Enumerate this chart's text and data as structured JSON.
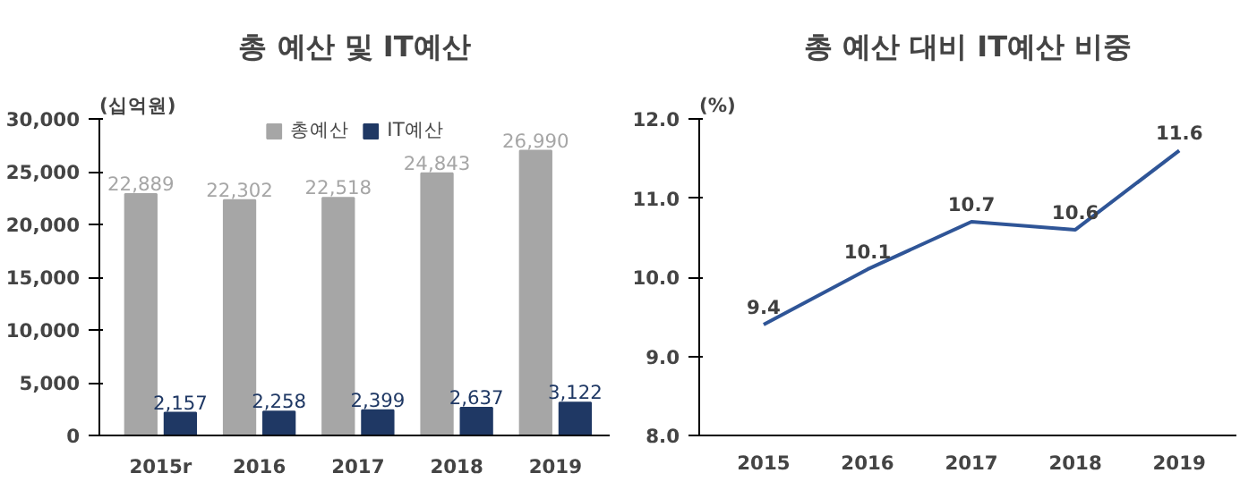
{
  "chart_data": [
    {
      "type": "bar",
      "title": "총 예산 및 IT예산",
      "ylabel": "(십억원)",
      "categories": [
        "2015r",
        "2016",
        "2017",
        "2018",
        "2019"
      ],
      "series": [
        {
          "name": "총예산",
          "color": "#a6a6a6",
          "values": [
            22889,
            22302,
            22518,
            24843,
            26990
          ],
          "value_labels": [
            "22,889",
            "22,302",
            "22,518",
            "24,843",
            "26,990"
          ]
        },
        {
          "name": "IT예산",
          "color": "#1f3864",
          "values": [
            2157,
            2258,
            2399,
            2637,
            3122
          ],
          "value_labels": [
            "2,157",
            "2,258",
            "2,399",
            "2,637",
            "3,122"
          ]
        }
      ],
      "ylim": [
        0,
        30000
      ],
      "yticks": [
        0,
        {
          "value": 5000,
          "label": "5,000"
        },
        {
          "value": 10000,
          "label": "10,000"
        },
        {
          "value": 15000,
          "label": "15,000"
        },
        {
          "value": 20000,
          "label": "20,000"
        },
        {
          "value": 25000,
          "label": "25,000"
        },
        {
          "value": 30000,
          "label": "30,000"
        }
      ],
      "legend": "top",
      "grid": false
    },
    {
      "type": "line",
      "title": "총 예산 대비 IT예산 비중",
      "ylabel": "(%)",
      "categories": [
        "2015",
        "2016",
        "2017",
        "2018",
        "2019"
      ],
      "series": [
        {
          "color": "#2f5597",
          "values": [
            9.4,
            10.1,
            10.7,
            10.6,
            11.6
          ]
        }
      ],
      "data_labels": true,
      "ylim": [
        8,
        12
      ],
      "yticks": [
        {
          "value": 8,
          "label": "8.0"
        },
        {
          "value": 9,
          "label": "9.0"
        },
        {
          "value": 10,
          "label": "10.0"
        },
        {
          "value": 11,
          "label": "11.0"
        },
        {
          "value": 12,
          "label": "12.0"
        }
      ],
      "grid": false,
      "marker": "none",
      "line_style": "solid"
    }
  ]
}
